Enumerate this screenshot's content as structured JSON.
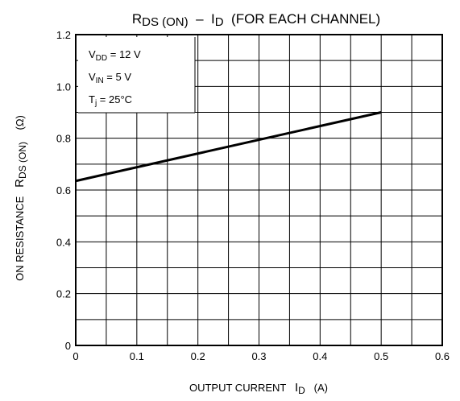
{
  "chart_data": {
    "type": "line",
    "title": {
      "main": "R",
      "sub": "DS (ON)",
      "dash": "–",
      "id_main": "I",
      "id_sub": "D",
      "suffix": "(FOR EACH CHANNEL)"
    },
    "xlabel": {
      "main": "OUTPUT CURRENT",
      "sym": "I",
      "sub": "D",
      "unit": "(A)"
    },
    "ylabel": {
      "main": "ON RESISTANCE",
      "sym": "R",
      "sub": "DS (ON)",
      "unit": "(Ω)"
    },
    "xlim": [
      0,
      0.6
    ],
    "ylim": [
      0,
      1.2
    ],
    "x_ticks": [
      "0",
      "0.1",
      "0.2",
      "0.3",
      "0.4",
      "0.5",
      "0.6"
    ],
    "y_ticks": [
      "0",
      "0.2",
      "0.4",
      "0.6",
      "0.8",
      "1.0",
      "1.2"
    ],
    "grid": true,
    "conditions": [
      {
        "sym": "V",
        "sub": "DD",
        "rest": " = 12 V"
      },
      {
        "sym": "V",
        "sub": "IN",
        "rest": " = 5 V"
      },
      {
        "sym": "T",
        "sub": "j",
        "rest": " = 25°C"
      }
    ],
    "series": [
      {
        "x": [
          0,
          0.5
        ],
        "y": [
          0.635,
          0.9
        ]
      }
    ]
  }
}
